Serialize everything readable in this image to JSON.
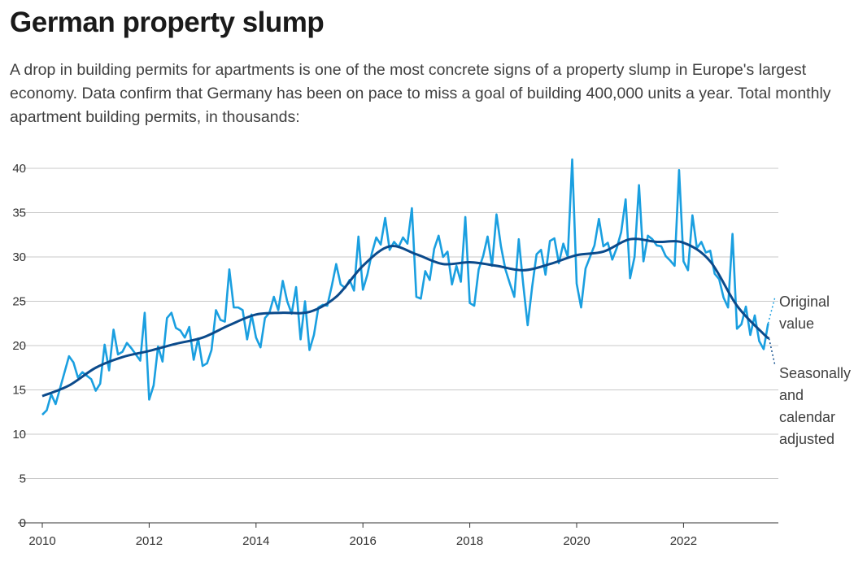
{
  "title": "German property slump",
  "subtitle": "A drop in building permits for apartments is one of the most concrete signs of a property slump in Europe's largest economy. Data confirm that Germany has been on pace to miss a goal of building 400,000 units a year. Total monthly apartment building permits, in thousands:",
  "chart_data": {
    "type": "line",
    "title": "German property slump",
    "ylabel": "Total monthly apartment building permits, in thousands",
    "ylim": [
      0,
      40
    ],
    "xlim": [
      2010,
      2023.75
    ],
    "yticks": [
      "0",
      "5",
      "10",
      "15",
      "20",
      "25",
      "30",
      "35",
      "40"
    ],
    "xticks": [
      "2010",
      "2012",
      "2014",
      "2016",
      "2018",
      "2020",
      "2022"
    ],
    "grid": true,
    "colors": {
      "original": "#1a9fe0",
      "adjusted": "#0b4a8b",
      "grid": "#c8c8c8"
    },
    "series": [
      {
        "name": "Original value",
        "label_lines": [
          "Original",
          "value"
        ],
        "start": 2010,
        "step_months": 1,
        "values": [
          12.2,
          12.7,
          14.5,
          13.4,
          15.2,
          17.0,
          18.8,
          18.1,
          16.4,
          17.0,
          16.6,
          16.2,
          14.9,
          15.7,
          20.1,
          17.2,
          21.8,
          19.0,
          19.3,
          20.3,
          19.7,
          19.0,
          18.3,
          23.7,
          13.9,
          15.5,
          19.9,
          18.2,
          23.1,
          23.7,
          22.0,
          21.7,
          20.9,
          22.1,
          18.4,
          20.8,
          17.7,
          18.0,
          19.5,
          24.0,
          22.9,
          22.7,
          28.6,
          24.3,
          24.3,
          24.0,
          20.7,
          23.5,
          20.9,
          19.8,
          23.1,
          23.7,
          25.5,
          24.0,
          27.3,
          25.0,
          23.6,
          26.6,
          20.7,
          25.0,
          19.5,
          21.2,
          24.3,
          24.6,
          24.5,
          26.7,
          29.2,
          26.9,
          26.5,
          27.4,
          26.2,
          32.3,
          26.3,
          28.0,
          30.4,
          32.2,
          31.4,
          34.4,
          30.8,
          31.7,
          31.1,
          32.2,
          31.5,
          35.5,
          25.5,
          25.3,
          28.4,
          27.4,
          30.9,
          32.4,
          30.0,
          30.6,
          26.9,
          29.0,
          27.2,
          34.5,
          24.8,
          24.5,
          28.6,
          30.1,
          32.3,
          29.0,
          34.8,
          31.2,
          28.6,
          27.0,
          25.5,
          32.0,
          26.9,
          22.3,
          26.6,
          30.3,
          30.8,
          28.0,
          31.8,
          32.1,
          29.3,
          31.5,
          30.0,
          41.0,
          27.0,
          24.3,
          28.7,
          30.0,
          31.3,
          34.3,
          31.2,
          31.6,
          29.7,
          31.0,
          32.8,
          36.5,
          27.6,
          30.0,
          38.1,
          29.5,
          32.4,
          32.0,
          31.3,
          31.2,
          30.1,
          29.6,
          29.0,
          39.8,
          29.5,
          28.5,
          34.7,
          31.0,
          31.7,
          30.5,
          30.7,
          28.1,
          27.5,
          25.4,
          24.3,
          32.6,
          21.9,
          22.4,
          24.4,
          21.2,
          23.4,
          20.5,
          19.6,
          22.5
        ]
      },
      {
        "name": "Seasonally and calendar adjusted",
        "label_lines": [
          "Seasonally",
          "and",
          "calendar",
          "adjusted"
        ],
        "x": [
          2010.0,
          2010.5,
          2011.0,
          2011.5,
          2012.0,
          2012.5,
          2013.0,
          2013.5,
          2014.0,
          2014.5,
          2015.0,
          2015.5,
          2016.0,
          2016.5,
          2017.0,
          2017.5,
          2018.0,
          2018.5,
          2019.0,
          2019.5,
          2020.0,
          2020.5,
          2021.0,
          2021.5,
          2022.0,
          2022.5,
          2023.0,
          2023.5,
          2023.6
        ],
        "values": [
          14.3,
          15.5,
          17.5,
          18.7,
          19.4,
          20.2,
          20.9,
          22.3,
          23.5,
          23.7,
          23.8,
          25.5,
          29.0,
          31.2,
          30.3,
          29.2,
          29.4,
          29.0,
          28.5,
          29.2,
          30.2,
          30.6,
          32.0,
          31.7,
          31.6,
          29.5,
          24.5,
          21.3,
          20.8
        ]
      }
    ]
  }
}
